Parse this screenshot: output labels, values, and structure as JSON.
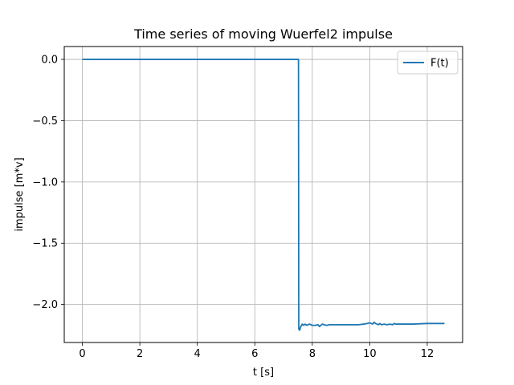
{
  "chart_data": {
    "type": "line",
    "title": "Time series of moving Wuerfel2 impulse",
    "xlabel": "t [s]",
    "ylabel": "impulse [m*v]",
    "xlim": [
      -0.63,
      13.23
    ],
    "ylim": [
      -2.31,
      0.105
    ],
    "xticks": [
      0,
      2,
      4,
      6,
      8,
      10,
      12
    ],
    "yticks": [
      0.0,
      -0.5,
      -1.0,
      -1.5,
      -2.0
    ],
    "xtick_labels": [
      "0",
      "2",
      "4",
      "6",
      "8",
      "10",
      "12"
    ],
    "ytick_labels": [
      "0.0",
      "−0.5",
      "−1.0",
      "−1.5",
      "−2.0"
    ],
    "grid": true,
    "legend_position": "top-right",
    "colors": {
      "series": "#1f77b4",
      "grid": "#b0b0b0",
      "axes": "#000000"
    },
    "series": [
      {
        "name": "F(t)",
        "x": [
          0,
          7.52,
          7.53,
          7.56,
          7.6,
          7.65,
          7.7,
          7.75,
          7.8,
          7.9,
          8.0,
          8.1,
          8.2,
          8.25,
          8.3,
          8.35,
          8.4,
          8.5,
          8.6,
          8.7,
          8.8,
          9.0,
          9.2,
          9.4,
          9.6,
          9.8,
          9.9,
          10.0,
          10.1,
          10.15,
          10.2,
          10.3,
          10.35,
          10.4,
          10.5,
          10.6,
          10.7,
          10.8,
          10.85,
          10.9,
          11.0,
          11.5,
          12.0,
          12.6
        ],
        "y": [
          0.0,
          0.0,
          -2.2,
          -2.21,
          -2.18,
          -2.16,
          -2.17,
          -2.16,
          -2.17,
          -2.16,
          -2.17,
          -2.17,
          -2.165,
          -2.18,
          -2.17,
          -2.16,
          -2.165,
          -2.17,
          -2.165,
          -2.165,
          -2.165,
          -2.165,
          -2.165,
          -2.165,
          -2.165,
          -2.16,
          -2.155,
          -2.15,
          -2.16,
          -2.145,
          -2.155,
          -2.165,
          -2.155,
          -2.165,
          -2.16,
          -2.165,
          -2.16,
          -2.165,
          -2.155,
          -2.16,
          -2.16,
          -2.16,
          -2.155,
          -2.155
        ]
      }
    ]
  }
}
